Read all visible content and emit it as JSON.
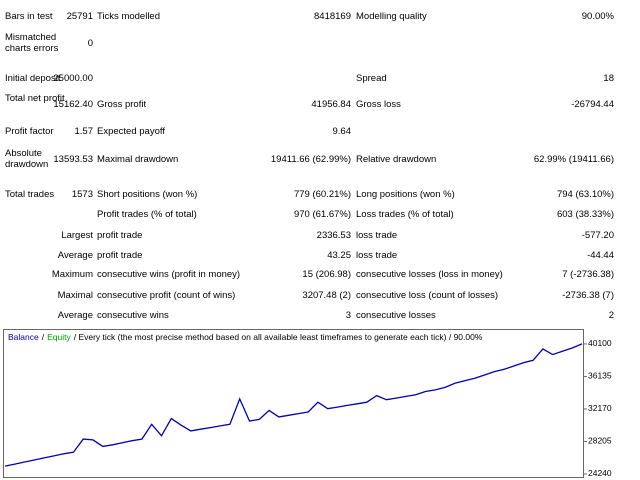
{
  "report": {
    "rows": [
      {
        "l1": "Bars in test",
        "v1": "25791",
        "l2": "Ticks modelled",
        "v2": "8418169",
        "l3": "Modelling quality",
        "v3": "90.00%"
      },
      {
        "l1": "Mismatched charts errors",
        "v1": "0"
      },
      {
        "l1": "Initial deposit",
        "v1": "25000.00",
        "l3": "Spread",
        "v3": "18"
      },
      {
        "l1": "Total net profit",
        "v1": "15162.40",
        "l2": "Gross profit",
        "v2": "41956.84",
        "l3": "Gross loss",
        "v3": "-26794.44"
      },
      {
        "l1": "Profit factor",
        "v1": "1.57",
        "l2": "Expected payoff",
        "v2": "9.64"
      },
      {
        "l1": "Absolute drawdown",
        "v1": "13593.53",
        "l2": "Maximal drawdown",
        "v2": "19411.66 (62.99%)",
        "l3": "Relative drawdown",
        "v3": "62.99% (19411.66)"
      },
      {
        "l1": "Total trades",
        "v1": "1573",
        "l2": "Short positions (won %)",
        "v2": "779 (60.21%)",
        "l3": "Long positions (won %)",
        "v3": "794 (63.10%)"
      },
      {
        "l2": "Profit trades (% of total)",
        "v2": "970 (61.67%)",
        "l3": "Loss trades (% of total)",
        "v3": "603 (38.33%)"
      },
      {
        "v1": "Largest",
        "l2": "profit trade",
        "v2": "2336.53",
        "l3": "loss trade",
        "v3": "-577.20"
      },
      {
        "v1": "Average",
        "l2": "profit trade",
        "v2": "43.25",
        "l3": "loss trade",
        "v3": "-44.44"
      },
      {
        "v1": "Maximum",
        "l2": "consecutive wins (profit in money)",
        "v2": "15 (206.98)",
        "l3": "consecutive losses (loss in money)",
        "v3": "7 (-2736.38)"
      },
      {
        "v1": "Maximal",
        "l2": "consecutive profit (count of wins)",
        "v2": "3207.48 (2)",
        "l3": "consecutive loss (count of losses)",
        "v3": "-2736.38 (7)"
      },
      {
        "v1": "Average",
        "l2": "consecutive wins",
        "v2": "3",
        "l3": "consecutive losses",
        "v3": "2"
      }
    ]
  },
  "chart_data": {
    "type": "line",
    "series": [
      {
        "name": "Balance",
        "color": "#0000b4",
        "values": [
          25200,
          25450,
          25700,
          25950,
          26200,
          26450,
          26700,
          26900,
          28500,
          28400,
          27600,
          27800,
          28050,
          28300,
          28500,
          30300,
          28900,
          31000,
          30200,
          29500,
          29700,
          29900,
          30100,
          30300,
          33400,
          30700,
          30900,
          32000,
          31200,
          31400,
          31600,
          31800,
          33000,
          32200,
          32400,
          32600,
          32800,
          33000,
          33800,
          33300,
          33500,
          33700,
          33900,
          34300,
          34500,
          34800,
          35300,
          35600,
          35900,
          36300,
          36700,
          37000,
          37400,
          37800,
          38100,
          39500,
          38800,
          39200,
          39600,
          40100
        ]
      }
    ],
    "legend": [
      {
        "text": "/",
        "color": "#000000"
      },
      {
        "text": "Equity",
        "color": "#00a000"
      },
      {
        "text": "/ Every tick (the most precise method based on all available least timeframes to generate each tick) / 90.00%",
        "color": "#000000"
      }
    ],
    "ylim": [
      23750,
      41800
    ],
    "yticks": [
      40100,
      36135,
      32170,
      28205,
      24240
    ]
  }
}
